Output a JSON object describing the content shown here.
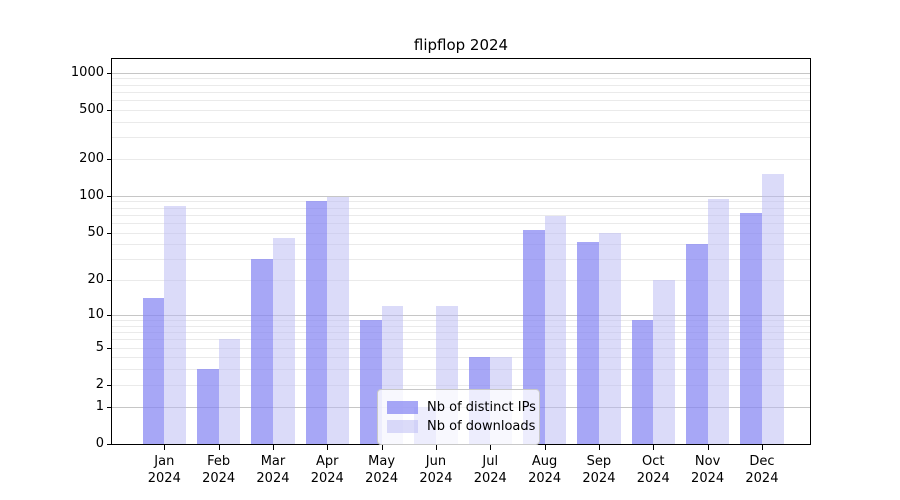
{
  "title": "flipflop 2024",
  "legend": {
    "items": [
      {
        "label": "Nb of distinct IPs",
        "color": "rgba(133,133,243,0.72)"
      },
      {
        "label": "Nb of downloads",
        "color": "rgba(183,183,243,0.50)"
      }
    ]
  },
  "axes": {
    "y_tick_labels": [
      "1000",
      "500",
      "200",
      "100",
      "50",
      "20",
      "10",
      "5",
      "2",
      "1",
      "0"
    ],
    "y_major_gridlines": [
      1,
      10,
      100,
      1000
    ],
    "y_scale": "log10(1+value)",
    "grid": "horizontal major + minor log-decade lines"
  },
  "colors": {
    "ips_bar": "rgba(133,133,243,0.72)",
    "downloads_bar": "rgba(183,183,243,0.50)",
    "major_grid": "#c6c6c6",
    "minor_grid": "#eaeaea",
    "spine": "#000000",
    "background": "#ffffff"
  },
  "chart_data": {
    "type": "bar",
    "title": "flipflop 2024",
    "categories": [
      "Jan 2024",
      "Feb 2024",
      "Mar 2024",
      "Apr 2024",
      "May 2024",
      "Jun 2024",
      "Jul 2024",
      "Aug 2024",
      "Sep 2024",
      "Oct 2024",
      "Nov 2024",
      "Dec 2024"
    ],
    "series": [
      {
        "name": "Nb of distinct IPs",
        "values": [
          14,
          3,
          30,
          90,
          9,
          1,
          4,
          53,
          42,
          9,
          40,
          73
        ]
      },
      {
        "name": "Nb of downloads",
        "values": [
          82,
          6,
          45,
          98,
          12,
          12,
          4,
          68,
          50,
          20,
          95,
          150
        ]
      }
    ],
    "xlabel": "",
    "ylabel": "",
    "y_ticks": [
      0,
      1,
      2,
      5,
      10,
      20,
      50,
      100,
      200,
      500,
      1000
    ],
    "ylim": [
      0,
      1288
    ],
    "y_scale": "log1p",
    "grid": true,
    "legend_position": "lower center inside plot"
  }
}
